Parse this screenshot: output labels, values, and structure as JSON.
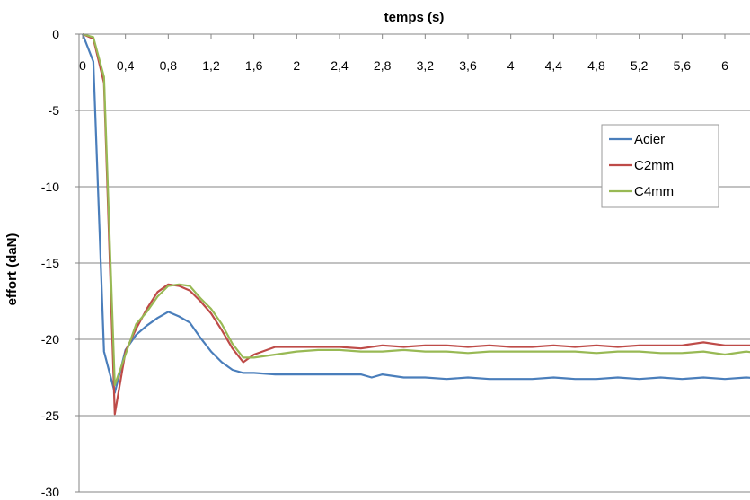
{
  "chart_data": {
    "type": "line",
    "xlabel": "temps (s)",
    "ylabel": "effort (daN)",
    "xlim": [
      0,
      6.5
    ],
    "ylim": [
      -30,
      0
    ],
    "x_ticks": [
      "0",
      "0,4",
      "0,8",
      "1,2",
      "1,6",
      "2",
      "2,4",
      "2,8",
      "3,2",
      "3,6",
      "4",
      "4,4",
      "4,8",
      "5,2",
      "5,6",
      "6"
    ],
    "x_tick_values": [
      0,
      0.4,
      0.8,
      1.2,
      1.6,
      2,
      2.4,
      2.8,
      3.2,
      3.6,
      4,
      4.4,
      4.8,
      5.2,
      5.6,
      6
    ],
    "y_ticks": [
      0,
      -5,
      -10,
      -15,
      -20,
      -25,
      -30
    ],
    "grid": "horizontal",
    "legend_position": "right",
    "series": [
      {
        "name": "Acier",
        "color": "#4a7ebb",
        "x": [
          0,
          0.1,
          0.2,
          0.3,
          0.4,
          0.5,
          0.6,
          0.7,
          0.8,
          0.9,
          1.0,
          1.1,
          1.2,
          1.3,
          1.4,
          1.5,
          1.6,
          1.8,
          2.0,
          2.2,
          2.4,
          2.6,
          2.7,
          2.8,
          3.0,
          3.2,
          3.4,
          3.6,
          3.8,
          4.0,
          4.2,
          4.4,
          4.6,
          4.8,
          5.0,
          5.2,
          5.4,
          5.6,
          5.8,
          6.0,
          6.2,
          6.4
        ],
        "y": [
          0,
          -1.8,
          -20.8,
          -23.5,
          -20.7,
          -19.7,
          -19.1,
          -18.6,
          -18.2,
          -18.5,
          -18.9,
          -19.9,
          -20.8,
          -21.5,
          -22.0,
          -22.2,
          -22.2,
          -22.3,
          -22.3,
          -22.3,
          -22.3,
          -22.3,
          -22.5,
          -22.3,
          -22.5,
          -22.5,
          -22.6,
          -22.5,
          -22.6,
          -22.6,
          -22.6,
          -22.5,
          -22.6,
          -22.6,
          -22.5,
          -22.6,
          -22.5,
          -22.6,
          -22.5,
          -22.6,
          -22.5,
          -22.6
        ]
      },
      {
        "name": "C2mm",
        "color": "#be4b48",
        "x": [
          0,
          0.1,
          0.2,
          0.3,
          0.4,
          0.5,
          0.6,
          0.7,
          0.8,
          0.9,
          1.0,
          1.1,
          1.2,
          1.3,
          1.4,
          1.5,
          1.6,
          1.8,
          2.0,
          2.2,
          2.4,
          2.6,
          2.8,
          3.0,
          3.2,
          3.4,
          3.6,
          3.8,
          4.0,
          4.2,
          4.4,
          4.6,
          4.8,
          5.0,
          5.2,
          5.4,
          5.6,
          5.8,
          6.0,
          6.2,
          6.4
        ],
        "y": [
          0,
          -0.3,
          -3.2,
          -24.9,
          -20.8,
          -19.3,
          -18.0,
          -16.9,
          -16.4,
          -16.5,
          -16.8,
          -17.5,
          -18.3,
          -19.4,
          -20.6,
          -21.5,
          -21.0,
          -20.5,
          -20.5,
          -20.5,
          -20.5,
          -20.6,
          -20.4,
          -20.5,
          -20.4,
          -20.4,
          -20.5,
          -20.4,
          -20.5,
          -20.5,
          -20.4,
          -20.5,
          -20.4,
          -20.5,
          -20.4,
          -20.4,
          -20.4,
          -20.2,
          -20.4,
          -20.4,
          -20.4
        ]
      },
      {
        "name": "C4mm",
        "color": "#98b954",
        "x": [
          0,
          0.1,
          0.2,
          0.3,
          0.4,
          0.5,
          0.6,
          0.7,
          0.8,
          0.9,
          1.0,
          1.1,
          1.2,
          1.3,
          1.4,
          1.5,
          1.6,
          1.8,
          2.0,
          2.2,
          2.4,
          2.6,
          2.8,
          3.0,
          3.2,
          3.4,
          3.6,
          3.8,
          4.0,
          4.2,
          4.4,
          4.6,
          4.8,
          5.0,
          5.2,
          5.4,
          5.6,
          5.8,
          6.0,
          6.2,
          6.4
        ],
        "y": [
          0,
          -0.2,
          -2.8,
          -23.0,
          -21.0,
          -19.0,
          -18.2,
          -17.2,
          -16.5,
          -16.4,
          -16.5,
          -17.3,
          -18.0,
          -19.0,
          -20.3,
          -21.2,
          -21.2,
          -21.0,
          -20.8,
          -20.7,
          -20.7,
          -20.8,
          -20.8,
          -20.7,
          -20.8,
          -20.8,
          -20.9,
          -20.8,
          -20.8,
          -20.8,
          -20.8,
          -20.8,
          -20.9,
          -20.8,
          -20.8,
          -20.9,
          -20.9,
          -20.8,
          -21.0,
          -20.8,
          -21.0
        ]
      }
    ]
  }
}
